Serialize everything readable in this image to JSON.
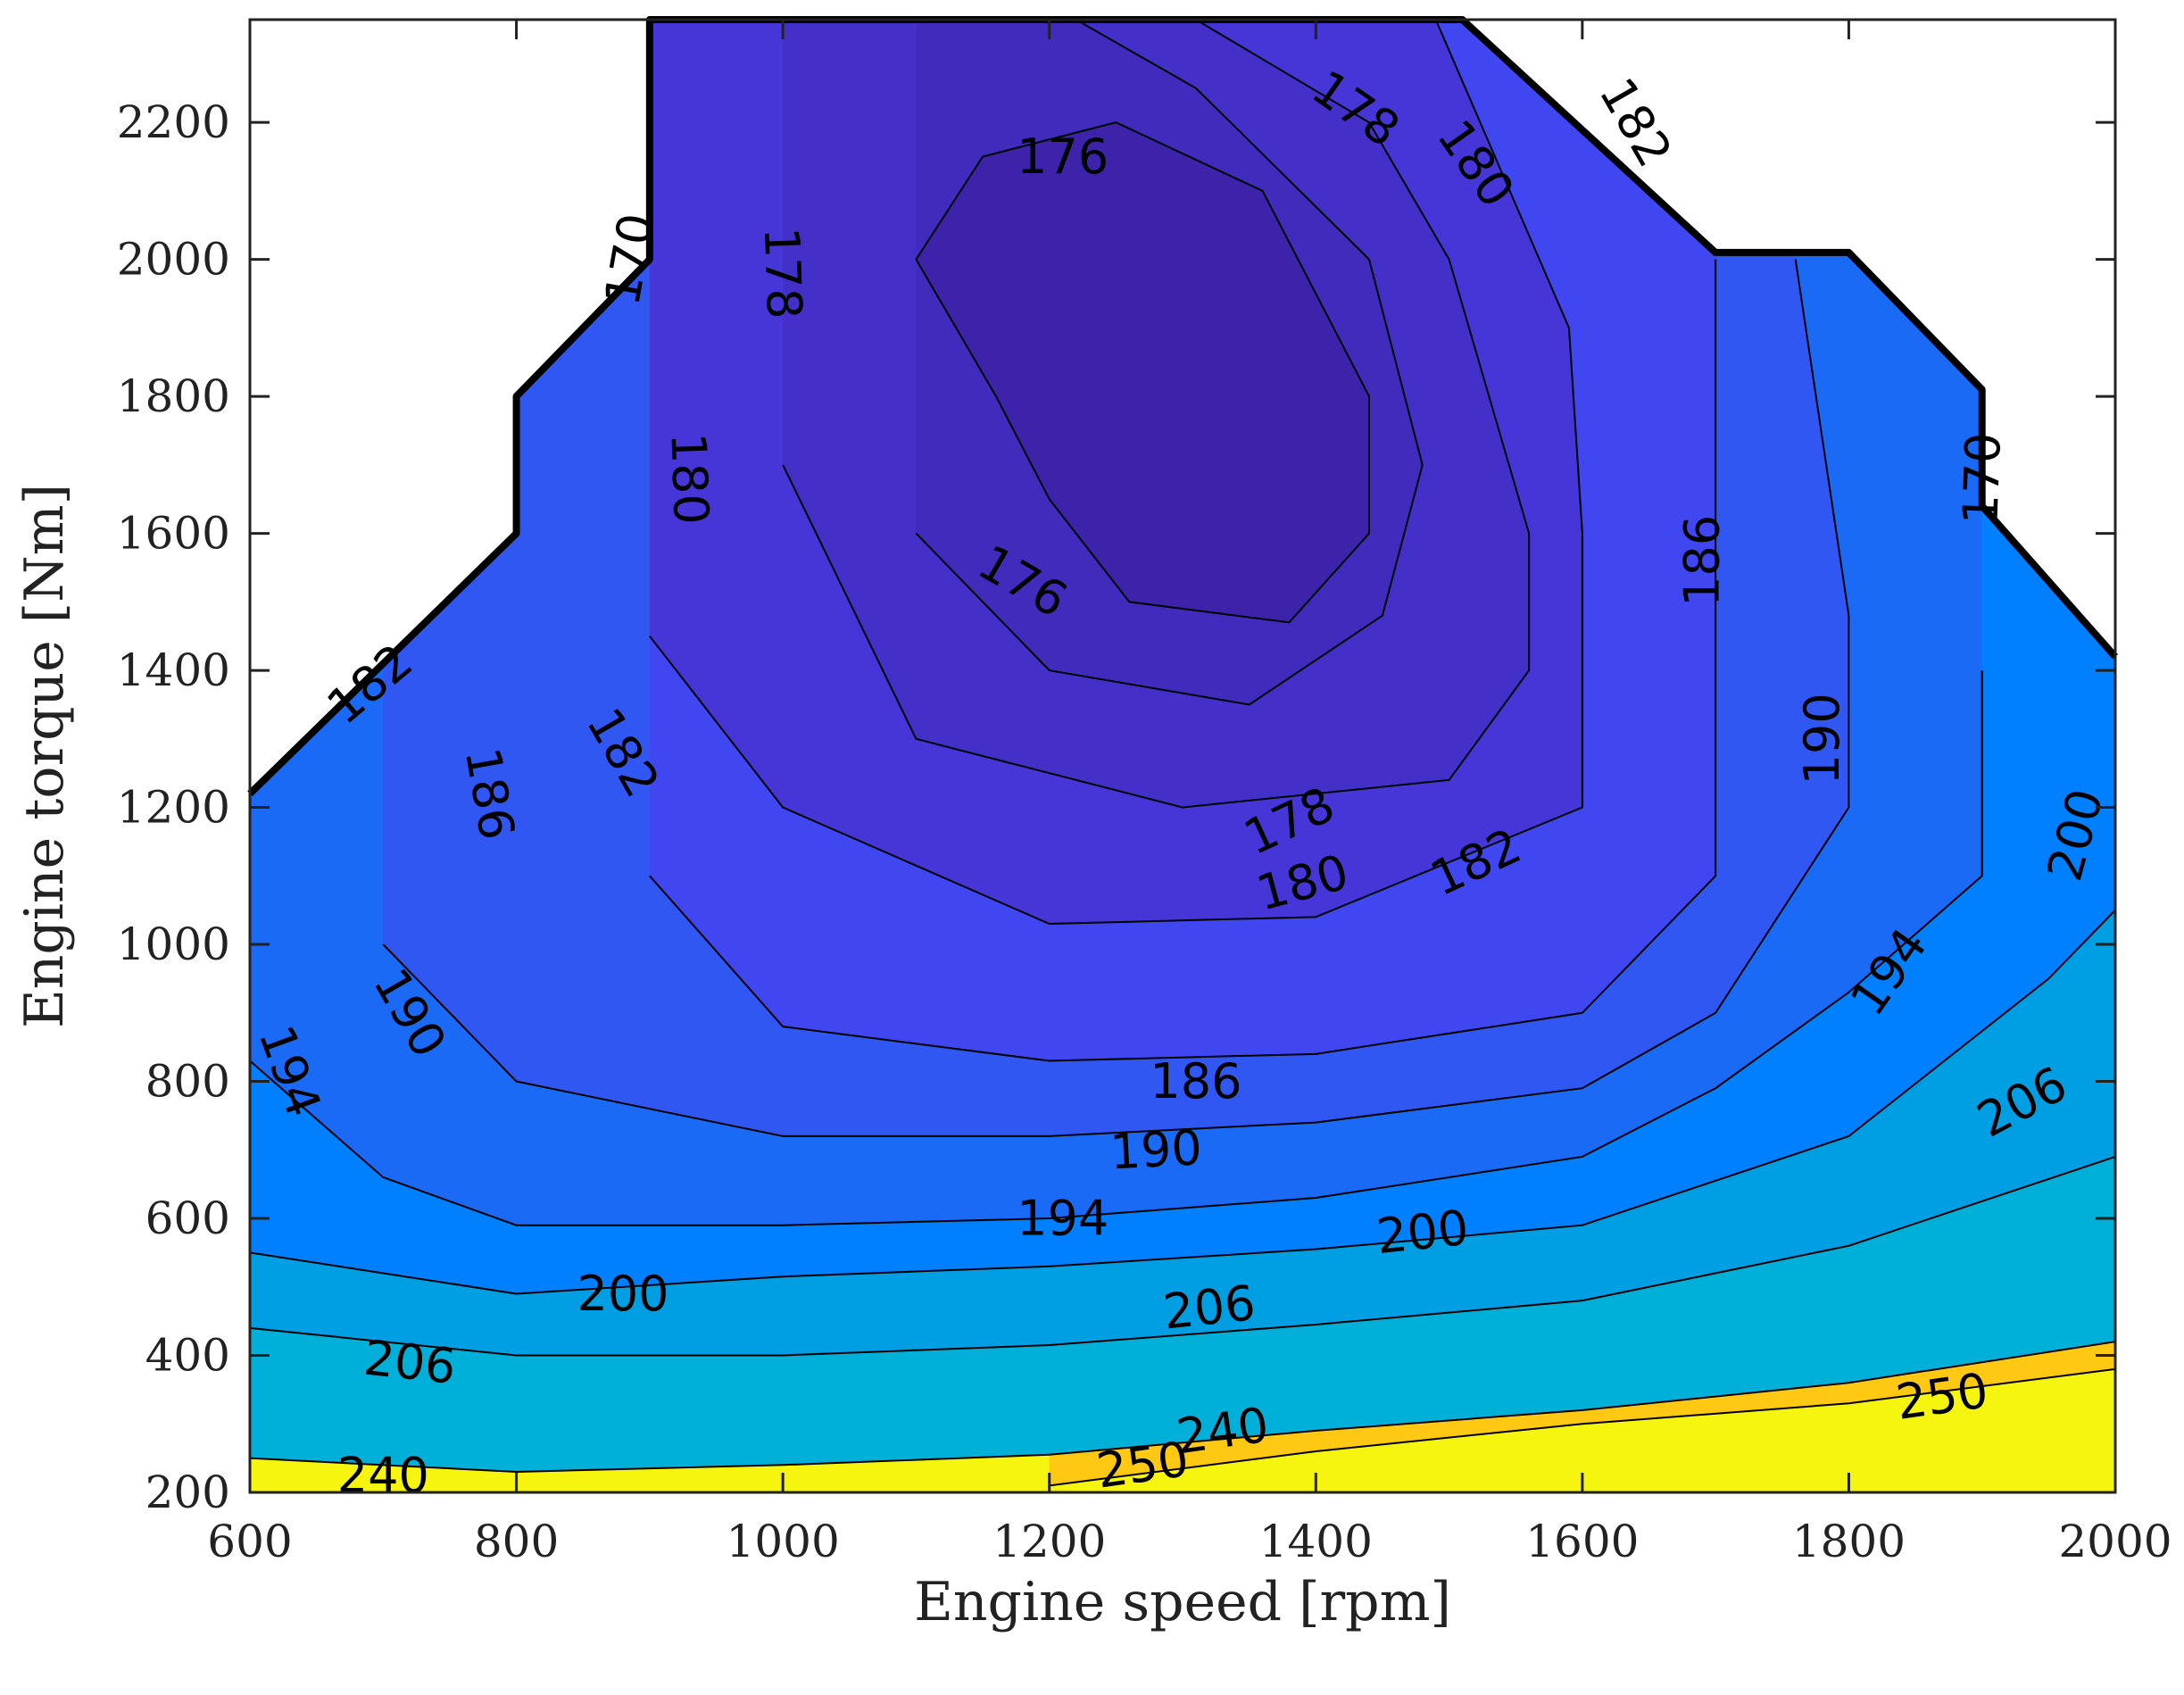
{
  "chart_data": {
    "type": "contour",
    "xlabel": "Engine speed [rpm]",
    "ylabel": "Engine torque [Nm]",
    "xlim": [
      600,
      2000
    ],
    "ylim": [
      200,
      2350
    ],
    "xticks": [
      "600",
      "800",
      "1000",
      "1200",
      "1400",
      "1600",
      "1800",
      "2000"
    ],
    "yticks": [
      "200",
      "400",
      "600",
      "800",
      "1000",
      "1200",
      "1400",
      "1600",
      "1800",
      "2000",
      "2200"
    ],
    "grid": false,
    "legend": "none",
    "boundary": [
      [
        600,
        1220
      ],
      [
        800,
        1600
      ],
      [
        800,
        1800
      ],
      [
        900,
        2000
      ],
      [
        900,
        2350
      ],
      [
        1510,
        2350
      ],
      [
        1700,
        2010
      ],
      [
        1800,
        2010
      ],
      [
        1900,
        1810
      ],
      [
        1900,
        1640
      ],
      [
        2000,
        1420
      ]
    ],
    "bands": [
      {
        "min": 250,
        "max": 260,
        "color": "#f5f50f"
      },
      {
        "min": 240,
        "max": 250,
        "color": "#ffc813"
      },
      {
        "min": 206,
        "max": 240,
        "color": "#00b0d8"
      },
      {
        "min": 200,
        "max": 206,
        "color": "#009ee3"
      },
      {
        "min": 194,
        "max": 200,
        "color": "#0080ff"
      },
      {
        "min": 190,
        "max": 194,
        "color": "#1b6af5"
      },
      {
        "min": 186,
        "max": 190,
        "color": "#3157f2"
      },
      {
        "min": 182,
        "max": 186,
        "color": "#4046f0"
      },
      {
        "min": 180,
        "max": 182,
        "color": "#4636d8"
      },
      {
        "min": 178,
        "max": 180,
        "color": "#4330c8"
      },
      {
        "min": 176,
        "max": 178,
        "color": "#402bbc"
      },
      {
        "min": 170,
        "max": 176,
        "color": "#3c23aa"
      }
    ],
    "contours": [
      {
        "level": 250,
        "points": [
          [
            1200,
            210
          ],
          [
            1400,
            260
          ],
          [
            1600,
            300
          ],
          [
            1800,
            330
          ],
          [
            2000,
            380
          ]
        ]
      },
      {
        "level": 240,
        "points": [
          [
            600,
            250
          ],
          [
            800,
            230
          ],
          [
            1000,
            240
          ],
          [
            1200,
            255
          ],
          [
            1400,
            290
          ],
          [
            1600,
            320
          ],
          [
            1800,
            360
          ],
          [
            2000,
            420
          ]
        ]
      },
      {
        "level": 206,
        "points": [
          [
            600,
            440
          ],
          [
            800,
            400
          ],
          [
            1000,
            400
          ],
          [
            1200,
            415
          ],
          [
            1400,
            445
          ],
          [
            1600,
            480
          ],
          [
            1800,
            560
          ],
          [
            2000,
            690
          ]
        ]
      },
      {
        "level": 200,
        "points": [
          [
            600,
            550
          ],
          [
            800,
            490
          ],
          [
            1000,
            515
          ],
          [
            1200,
            530
          ],
          [
            1400,
            555
          ],
          [
            1600,
            590
          ],
          [
            1800,
            720
          ],
          [
            1950,
            950
          ],
          [
            2000,
            1050
          ]
        ]
      },
      {
        "level": 194,
        "points": [
          [
            600,
            830
          ],
          [
            700,
            660
          ],
          [
            800,
            590
          ],
          [
            1000,
            590
          ],
          [
            1200,
            600
          ],
          [
            1400,
            630
          ],
          [
            1600,
            690
          ],
          [
            1700,
            790
          ],
          [
            1800,
            930
          ],
          [
            1900,
            1100
          ],
          [
            1900,
            1400
          ]
        ]
      },
      {
        "level": 190,
        "points": [
          [
            700,
            1000
          ],
          [
            800,
            800
          ],
          [
            1000,
            720
          ],
          [
            1200,
            720
          ],
          [
            1400,
            740
          ],
          [
            1600,
            790
          ],
          [
            1700,
            900
          ],
          [
            1800,
            1200
          ],
          [
            1800,
            1480
          ],
          [
            1760,
            2000
          ]
        ]
      },
      {
        "level": 186,
        "points": [
          [
            900,
            1100
          ],
          [
            1000,
            880
          ],
          [
            1200,
            830
          ],
          [
            1400,
            840
          ],
          [
            1600,
            900
          ],
          [
            1700,
            1100
          ],
          [
            1700,
            1400
          ],
          [
            1700,
            1800
          ],
          [
            1700,
            2000
          ]
        ]
      },
      {
        "level": 182,
        "points": [
          [
            900,
            1450
          ],
          [
            1000,
            1200
          ],
          [
            1200,
            1030
          ],
          [
            1400,
            1040
          ],
          [
            1600,
            1200
          ],
          [
            1600,
            1600
          ],
          [
            1590,
            1900
          ],
          [
            1490,
            2350
          ]
        ]
      },
      {
        "level": 180,
        "points": [
          [
            1000,
            1700
          ],
          [
            1100,
            1300
          ],
          [
            1300,
            1200
          ],
          [
            1500,
            1240
          ],
          [
            1560,
            1400
          ],
          [
            1560,
            1600
          ],
          [
            1500,
            2000
          ],
          [
            1440,
            2200
          ],
          [
            1310,
            2350
          ]
        ]
      },
      {
        "level": 178,
        "points": [
          [
            1100,
            1600
          ],
          [
            1200,
            1400
          ],
          [
            1350,
            1350
          ],
          [
            1450,
            1480
          ],
          [
            1480,
            1700
          ],
          [
            1440,
            2000
          ],
          [
            1310,
            2250
          ],
          [
            1220,
            2350
          ]
        ]
      },
      {
        "level": 176,
        "points": [
          [
            1200,
            1650
          ],
          [
            1260,
            1500
          ],
          [
            1380,
            1470
          ],
          [
            1440,
            1600
          ],
          [
            1440,
            1800
          ],
          [
            1360,
            2100
          ],
          [
            1250,
            2200
          ],
          [
            1150,
            2150
          ],
          [
            1100,
            2000
          ],
          [
            1160,
            1800
          ]
        ]
      }
    ],
    "labels": [
      {
        "text": "250",
        "x": 1270,
        "y": 240,
        "rotate": -8
      },
      {
        "text": "250",
        "x": 1870,
        "y": 340,
        "rotate": -8
      },
      {
        "text": "240",
        "x": 700,
        "y": 225,
        "rotate": 0
      },
      {
        "text": "240",
        "x": 1330,
        "y": 290,
        "rotate": -8
      },
      {
        "text": "206",
        "x": 720,
        "y": 390,
        "rotate": 6
      },
      {
        "text": "206",
        "x": 1320,
        "y": 470,
        "rotate": -6
      },
      {
        "text": "206",
        "x": 1930,
        "y": 770,
        "rotate": -28
      },
      {
        "text": "200",
        "x": 880,
        "y": 490,
        "rotate": 0
      },
      {
        "text": "200",
        "x": 1480,
        "y": 580,
        "rotate": -6
      },
      {
        "text": "200",
        "x": 1970,
        "y": 1160,
        "rotate": -75
      },
      {
        "text": "194",
        "x": 630,
        "y": 815,
        "rotate": 70
      },
      {
        "text": "194",
        "x": 1210,
        "y": 600,
        "rotate": 0
      },
      {
        "text": "194",
        "x": 1830,
        "y": 960,
        "rotate": -55
      },
      {
        "text": "190",
        "x": 720,
        "y": 900,
        "rotate": 60
      },
      {
        "text": "190",
        "x": 1280,
        "y": 700,
        "rotate": -3
      },
      {
        "text": "190",
        "x": 1780,
        "y": 1300,
        "rotate": -90
      },
      {
        "text": "186",
        "x": 780,
        "y": 1220,
        "rotate": 80
      },
      {
        "text": "186",
        "x": 1310,
        "y": 800,
        "rotate": 0
      },
      {
        "text": "186",
        "x": 1690,
        "y": 1560,
        "rotate": -90
      },
      {
        "text": "182",
        "x": 880,
        "y": 1280,
        "rotate": 60
      },
      {
        "text": "182",
        "x": 1520,
        "y": 1120,
        "rotate": -25
      },
      {
        "text": "182",
        "x": 1640,
        "y": 2200,
        "rotate": 60
      },
      {
        "text": "182",
        "x": 690,
        "y": 1380,
        "rotate": -40
      },
      {
        "text": "180",
        "x": 930,
        "y": 1680,
        "rotate": 88
      },
      {
        "text": "180",
        "x": 1390,
        "y": 1090,
        "rotate": -15
      },
      {
        "text": "180",
        "x": 1520,
        "y": 2140,
        "rotate": 55
      },
      {
        "text": "178",
        "x": 1000,
        "y": 1980,
        "rotate": 88
      },
      {
        "text": "178",
        "x": 1380,
        "y": 1180,
        "rotate": -25
      },
      {
        "text": "178",
        "x": 1430,
        "y": 2220,
        "rotate": 35
      },
      {
        "text": "176",
        "x": 1210,
        "y": 2150,
        "rotate": 0
      },
      {
        "text": "176",
        "x": 1180,
        "y": 1530,
        "rotate": 30
      },
      {
        "text": "170",
        "x": 885,
        "y": 2000,
        "rotate": -80
      },
      {
        "text": "170",
        "x": 1900,
        "y": 1680,
        "rotate": -88
      }
    ]
  }
}
